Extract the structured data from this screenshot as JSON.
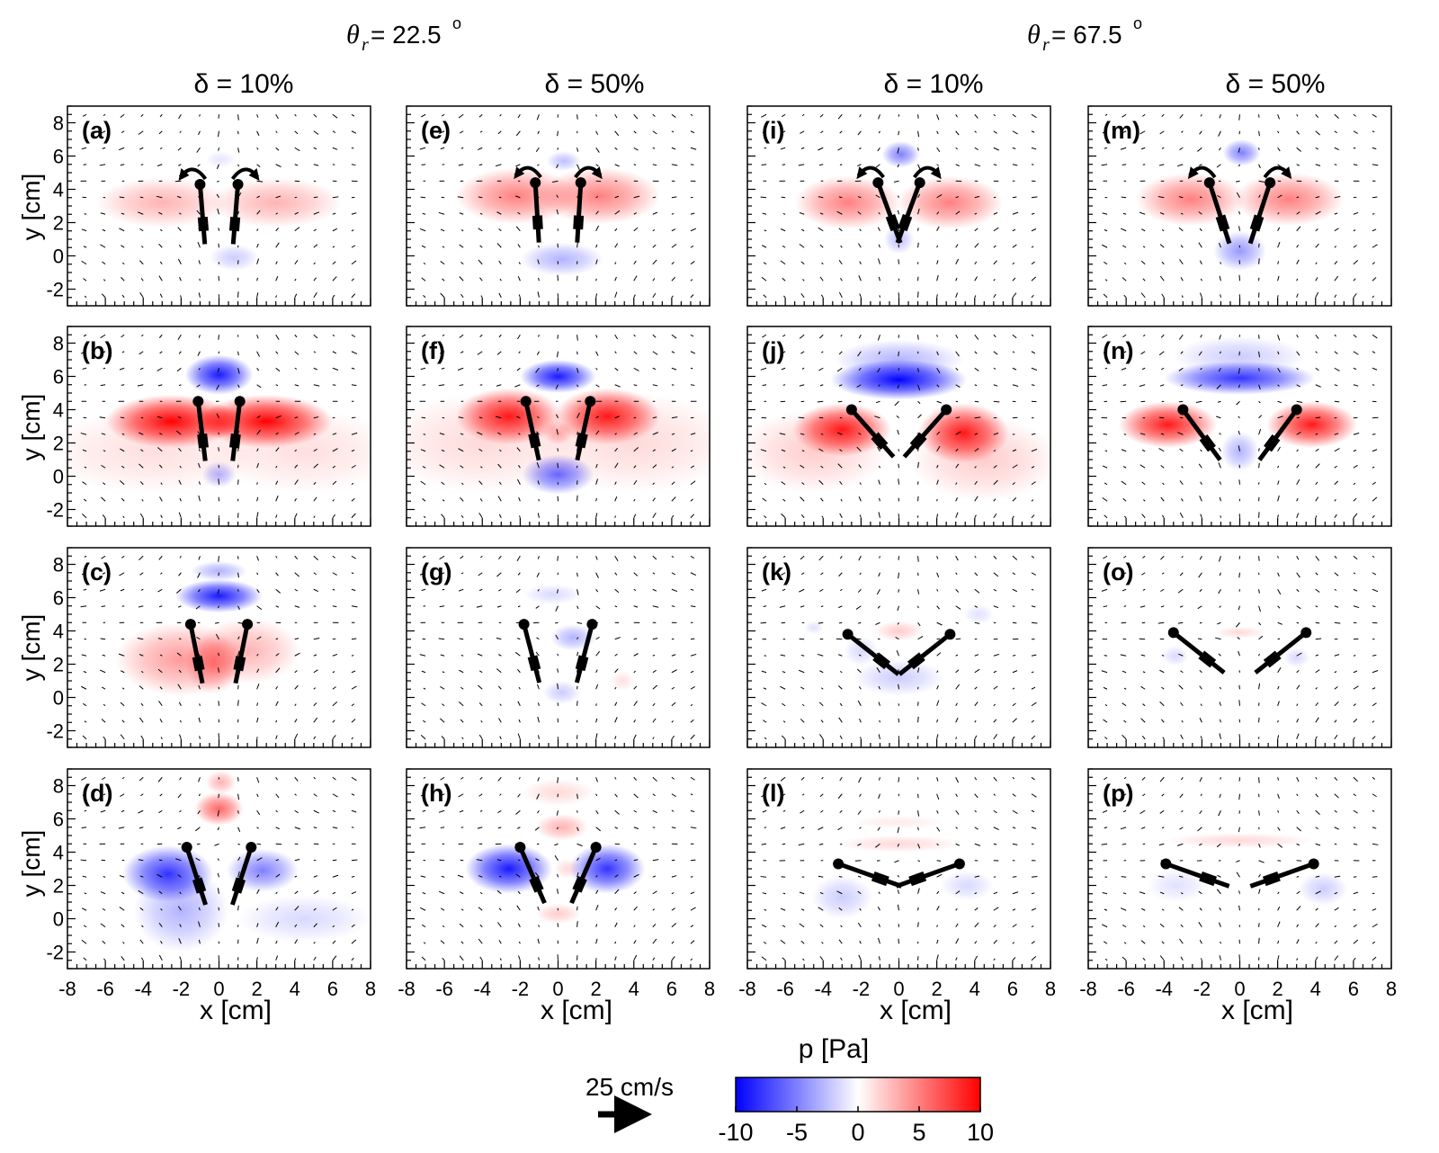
{
  "figure": {
    "group_headers": [
      {
        "symbol": "θ",
        "subscript": "r",
        "value_text": " = 22.5",
        "superscript": "o"
      },
      {
        "symbol": "θ",
        "subscript": "r",
        "value_text": " = 67.5",
        "superscript": "o"
      }
    ],
    "column_headers": [
      "δ = 10%",
      "δ = 50%",
      "δ = 10%",
      "δ = 50%"
    ],
    "panel_labels": [
      "(a)",
      "(b)",
      "(c)",
      "(d)",
      "(e)",
      "(f)",
      "(g)",
      "(h)",
      "(i)",
      "(j)",
      "(k)",
      "(l)",
      "(m)",
      "(n)",
      "(o)",
      "(p)"
    ],
    "xlabel": "x [cm]",
    "ylabel": "y [cm]",
    "colorbar": {
      "title": "p [Pa]",
      "ticks": [
        "-10",
        "-5",
        "0",
        "5",
        "10"
      ],
      "range": [
        -10,
        10
      ],
      "colors": {
        "negative": "#0000ff",
        "zero": "#ffffff",
        "positive": "#ff0000"
      }
    },
    "reference_vector": {
      "label": "25 cm/s"
    }
  },
  "chart_data": {
    "type": "heatmap",
    "description_units": {
      "x": "cm",
      "y": "cm",
      "p": "Pa"
    },
    "xlim": [
      -8,
      8
    ],
    "ylim": [
      -3,
      9
    ],
    "xticks": [
      "-8",
      "-6",
      "-4",
      "-2",
      "0",
      "2",
      "4",
      "6",
      "8"
    ],
    "yticks": [
      "-2",
      "0",
      "2",
      "4",
      "6",
      "8"
    ],
    "pressure_range": [
      -10,
      10
    ],
    "columns": [
      {
        "theta_r": 22.5,
        "delta_percent": 10
      },
      {
        "theta_r": 22.5,
        "delta_percent": 50
      },
      {
        "theta_r": 67.5,
        "delta_percent": 10
      },
      {
        "theta_r": 67.5,
        "delta_percent": 50
      }
    ],
    "panels": [
      {
        "label": "(a)",
        "col": 0,
        "row": 0,
        "pivot_y": 4.3,
        "pivot_x": 1.0,
        "wing_len": 3.6,
        "tilt": 4,
        "arrows": true,
        "blobs": [
          {
            "x": -3.0,
            "y": 3.2,
            "rx": 3.5,
            "ry": 1.5,
            "p": 3
          },
          {
            "x": 3.0,
            "y": 3.2,
            "rx": 3.5,
            "ry": 1.5,
            "p": 3
          },
          {
            "x": 0.1,
            "y": 5.8,
            "rx": 0.8,
            "ry": 0.5,
            "p": -1
          },
          {
            "x": 0.8,
            "y": -0.1,
            "rx": 1.3,
            "ry": 0.8,
            "p": -2
          }
        ]
      },
      {
        "label": "(b)",
        "col": 0,
        "row": 1,
        "pivot_y": 4.5,
        "pivot_x": 1.1,
        "wing_len": 3.6,
        "tilt": 6,
        "arrows": false,
        "blobs": [
          {
            "x": -2.5,
            "y": 3.3,
            "rx": 3.5,
            "ry": 1.6,
            "p": 10
          },
          {
            "x": 2.5,
            "y": 3.3,
            "rx": 3.5,
            "ry": 1.6,
            "p": 10
          },
          {
            "x": 0.0,
            "y": 3.3,
            "rx": 1.2,
            "ry": 1.0,
            "p": 6
          },
          {
            "x": 0.0,
            "y": 6.1,
            "rx": 1.8,
            "ry": 1.2,
            "p": -9
          },
          {
            "x": 0.0,
            "y": 0.1,
            "rx": 0.9,
            "ry": 0.8,
            "p": -3
          },
          {
            "x": -3.5,
            "y": 1.5,
            "rx": 6,
            "ry": 2.5,
            "p": 1.3
          },
          {
            "x": 4.5,
            "y": 1.5,
            "rx": 5,
            "ry": 2.5,
            "p": 1.3
          }
        ]
      },
      {
        "label": "(c)",
        "col": 0,
        "row": 2,
        "pivot_y": 4.4,
        "pivot_x": 1.5,
        "wing_len": 3.6,
        "tilt": 10,
        "arrows": false,
        "blobs": [
          {
            "x": -2.0,
            "y": 2.3,
            "rx": 3.5,
            "ry": 2.2,
            "p": 4
          },
          {
            "x": 1.5,
            "y": 2.8,
            "rx": 2.8,
            "ry": 2.0,
            "p": 3
          },
          {
            "x": -0.3,
            "y": 2.0,
            "rx": 1.5,
            "ry": 1.8,
            "p": 4
          },
          {
            "x": 0.0,
            "y": 6.1,
            "rx": 2.3,
            "ry": 1.0,
            "p": -9
          },
          {
            "x": 0.0,
            "y": 7.6,
            "rx": 1.5,
            "ry": 0.6,
            "p": -3
          }
        ]
      },
      {
        "label": "(d)",
        "col": 0,
        "row": 3,
        "pivot_y": 4.3,
        "pivot_x": 1.7,
        "wing_len": 3.6,
        "tilt": 16,
        "arrows": false,
        "blobs": [
          {
            "x": -2.7,
            "y": 2.7,
            "rx": 2.4,
            "ry": 1.7,
            "p": -8
          },
          {
            "x": 2.3,
            "y": 2.9,
            "rx": 1.9,
            "ry": 1.3,
            "p": -5
          },
          {
            "x": -2.0,
            "y": 0.5,
            "rx": 2.5,
            "ry": 2.5,
            "p": -3
          },
          {
            "x": 0.0,
            "y": 6.6,
            "rx": 1.3,
            "ry": 1.0,
            "p": 6
          },
          {
            "x": 0.1,
            "y": 8.2,
            "rx": 0.8,
            "ry": 0.7,
            "p": 3
          },
          {
            "x": 4.5,
            "y": 0.0,
            "rx": 3.5,
            "ry": 1.4,
            "p": -1.5
          }
        ]
      },
      {
        "label": "(e)",
        "col": 1,
        "row": 0,
        "pivot_y": 4.4,
        "pivot_x": 1.2,
        "wing_len": 3.6,
        "tilt": 3,
        "arrows": true,
        "blobs": [
          {
            "x": -2.2,
            "y": 3.6,
            "rx": 3.2,
            "ry": 1.7,
            "p": 5
          },
          {
            "x": 2.2,
            "y": 3.6,
            "rx": 3.2,
            "ry": 1.7,
            "p": 5
          },
          {
            "x": 0.3,
            "y": 5.7,
            "rx": 0.9,
            "ry": 0.6,
            "p": -2.5
          },
          {
            "x": 0.2,
            "y": -0.2,
            "rx": 2.2,
            "ry": 1.0,
            "p": -3
          }
        ]
      },
      {
        "label": "(f)",
        "col": 1,
        "row": 1,
        "pivot_y": 4.5,
        "pivot_x": 1.7,
        "wing_len": 3.6,
        "tilt": 11,
        "arrows": false,
        "blobs": [
          {
            "x": -2.6,
            "y": 3.6,
            "rx": 2.8,
            "ry": 1.7,
            "p": 9
          },
          {
            "x": 2.6,
            "y": 3.6,
            "rx": 2.8,
            "ry": 1.7,
            "p": 9
          },
          {
            "x": 0.0,
            "y": 6.0,
            "rx": 2.0,
            "ry": 1.0,
            "p": -9
          },
          {
            "x": 0.0,
            "y": 0.1,
            "rx": 1.9,
            "ry": 1.2,
            "p": -6
          },
          {
            "x": 0.0,
            "y": 2.6,
            "rx": 0.8,
            "ry": 0.7,
            "p": 3
          },
          {
            "x": -4,
            "y": 2.0,
            "rx": 5.5,
            "ry": 3,
            "p": 1.5
          },
          {
            "x": 4,
            "y": 2.0,
            "rx": 5.5,
            "ry": 3,
            "p": 1.5
          }
        ]
      },
      {
        "label": "(g)",
        "col": 1,
        "row": 2,
        "pivot_y": 4.4,
        "pivot_x": 1.8,
        "wing_len": 3.6,
        "tilt": 13,
        "arrows": false,
        "blobs": [
          {
            "x": 0.8,
            "y": 3.6,
            "rx": 1.2,
            "ry": 0.8,
            "p": -3
          },
          {
            "x": -0.3,
            "y": 6.2,
            "rx": 1.5,
            "ry": 0.6,
            "p": -1.5
          },
          {
            "x": 0.2,
            "y": 0.3,
            "rx": 1.0,
            "ry": 0.7,
            "p": -2
          },
          {
            "x": 3.4,
            "y": 1.0,
            "rx": 0.6,
            "ry": 0.6,
            "p": 1.2
          }
        ]
      },
      {
        "label": "(h)",
        "col": 1,
        "row": 3,
        "pivot_y": 4.3,
        "pivot_x": 2.0,
        "wing_len": 3.6,
        "tilt": 21,
        "arrows": false,
        "blobs": [
          {
            "x": -2.6,
            "y": 3.0,
            "rx": 2.3,
            "ry": 1.5,
            "p": -9
          },
          {
            "x": 2.6,
            "y": 3.0,
            "rx": 2.0,
            "ry": 1.5,
            "p": -8
          },
          {
            "x": 0.2,
            "y": 5.5,
            "rx": 1.4,
            "ry": 0.8,
            "p": 3
          },
          {
            "x": 0.0,
            "y": 7.6,
            "rx": 1.9,
            "ry": 0.8,
            "p": 1.5
          },
          {
            "x": 0.0,
            "y": 0.3,
            "rx": 1.2,
            "ry": 0.6,
            "p": 2
          },
          {
            "x": 0.5,
            "y": 3.0,
            "rx": 0.7,
            "ry": 0.6,
            "p": 1.5
          }
        ]
      },
      {
        "label": "(i)",
        "col": 2,
        "row": 0,
        "pivot_y": 4.4,
        "pivot_x": 1.1,
        "wing_len": 3.8,
        "tilt": 18,
        "arrows": true,
        "blobs": [
          {
            "x": -2.7,
            "y": 3.2,
            "rx": 2.8,
            "ry": 1.6,
            "p": 5
          },
          {
            "x": 2.7,
            "y": 3.2,
            "rx": 2.8,
            "ry": 1.6,
            "p": 5
          },
          {
            "x": 0.1,
            "y": 6.1,
            "rx": 1.0,
            "ry": 0.8,
            "p": -5
          },
          {
            "x": 0.0,
            "y": 1.0,
            "rx": 0.8,
            "ry": 0.9,
            "p": -2.5
          }
        ]
      },
      {
        "label": "(j)",
        "col": 2,
        "row": 1,
        "pivot_y": 4.0,
        "pivot_x": 2.5,
        "wing_len": 3.6,
        "tilt": 38,
        "arrows": false,
        "blobs": [
          {
            "x": -3.0,
            "y": 2.8,
            "rx": 2.6,
            "ry": 1.6,
            "p": 9
          },
          {
            "x": 3.4,
            "y": 2.6,
            "rx": 2.4,
            "ry": 1.8,
            "p": 9
          },
          {
            "x": 0.0,
            "y": 5.8,
            "rx": 3.6,
            "ry": 1.2,
            "p": -10
          },
          {
            "x": 0.0,
            "y": 7.0,
            "rx": 3.4,
            "ry": 1.2,
            "p": -3
          },
          {
            "x": -4.5,
            "y": 1.5,
            "rx": 4,
            "ry": 2.5,
            "p": 2
          },
          {
            "x": 4.5,
            "y": 1.0,
            "rx": 4,
            "ry": 2.5,
            "p": 2
          }
        ]
      },
      {
        "label": "(k)",
        "col": 2,
        "row": 2,
        "pivot_y": 3.8,
        "pivot_x": 2.7,
        "wing_len": 3.6,
        "tilt": 48,
        "arrows": false,
        "blobs": [
          {
            "x": 0.0,
            "y": 4.0,
            "rx": 1.3,
            "ry": 0.6,
            "p": 2
          },
          {
            "x": 0.0,
            "y": 1.2,
            "rx": 2.4,
            "ry": 1.1,
            "p": -2
          },
          {
            "x": -2.0,
            "y": 2.8,
            "rx": 0.9,
            "ry": 0.9,
            "p": -1.5
          },
          {
            "x": 4.2,
            "y": 5.0,
            "rx": 0.8,
            "ry": 0.6,
            "p": -1.2
          },
          {
            "x": -4.5,
            "y": 4.2,
            "rx": 0.5,
            "ry": 0.4,
            "p": -1.2
          }
        ]
      },
      {
        "label": "(l)",
        "col": 2,
        "row": 3,
        "pivot_y": 3.3,
        "pivot_x": 3.2,
        "wing_len": 3.6,
        "tilt": 68,
        "arrows": false,
        "blobs": [
          {
            "x": 0.0,
            "y": 4.5,
            "rx": 3.3,
            "ry": 0.5,
            "p": 1.5
          },
          {
            "x": 0.0,
            "y": 5.8,
            "rx": 2.5,
            "ry": 0.4,
            "p": 0.8
          },
          {
            "x": -3.0,
            "y": 1.3,
            "rx": 1.6,
            "ry": 1.3,
            "p": -2
          },
          {
            "x": 3.6,
            "y": 2.0,
            "rx": 1.4,
            "ry": 0.9,
            "p": -1.5
          }
        ]
      },
      {
        "label": "(m)",
        "col": 3,
        "row": 0,
        "pivot_y": 4.4,
        "pivot_x": 1.6,
        "wing_len": 3.8,
        "tilt": 16,
        "arrows": true,
        "blobs": [
          {
            "x": -2.6,
            "y": 3.4,
            "rx": 2.9,
            "ry": 1.6,
            "p": 5
          },
          {
            "x": 2.6,
            "y": 3.4,
            "rx": 2.9,
            "ry": 1.6,
            "p": 5
          },
          {
            "x": 0.1,
            "y": 6.2,
            "rx": 1.0,
            "ry": 0.8,
            "p": -5
          },
          {
            "x": 0.0,
            "y": 0.3,
            "rx": 1.4,
            "ry": 1.2,
            "p": -4
          }
        ]
      },
      {
        "label": "(n)",
        "col": 3,
        "row": 1,
        "pivot_y": 4.0,
        "pivot_x": 3.0,
        "wing_len": 3.6,
        "tilt": 33,
        "arrows": false,
        "blobs": [
          {
            "x": -3.8,
            "y": 3.1,
            "rx": 2.6,
            "ry": 1.4,
            "p": 9
          },
          {
            "x": 3.8,
            "y": 3.1,
            "rx": 2.4,
            "ry": 1.4,
            "p": 9
          },
          {
            "x": 0.0,
            "y": 5.9,
            "rx": 4.0,
            "ry": 1.0,
            "p": -8
          },
          {
            "x": 0.0,
            "y": 7.2,
            "rx": 3.5,
            "ry": 1.2,
            "p": -2
          },
          {
            "x": 0.0,
            "y": 1.5,
            "rx": 1.0,
            "ry": 1.2,
            "p": -3
          }
        ]
      },
      {
        "label": "(o)",
        "col": 3,
        "row": 2,
        "pivot_y": 3.9,
        "pivot_x": 3.5,
        "wing_len": 3.6,
        "tilt": 48,
        "arrows": false,
        "blobs": [
          {
            "x": 0.0,
            "y": 3.9,
            "rx": 1.3,
            "ry": 0.35,
            "p": 1.5
          },
          {
            "x": -3.4,
            "y": 2.5,
            "rx": 0.7,
            "ry": 0.6,
            "p": -1.5
          },
          {
            "x": 3.0,
            "y": 2.4,
            "rx": 0.7,
            "ry": 0.6,
            "p": -1.5
          }
        ]
      },
      {
        "label": "(p)",
        "col": 3,
        "row": 3,
        "pivot_y": 3.3,
        "pivot_x": 3.9,
        "wing_len": 3.6,
        "tilt": 68,
        "arrows": false,
        "blobs": [
          {
            "x": 0.0,
            "y": 4.7,
            "rx": 3.9,
            "ry": 0.45,
            "p": 1.5
          },
          {
            "x": -3.3,
            "y": 2.0,
            "rx": 1.6,
            "ry": 1.0,
            "p": -1.2
          },
          {
            "x": 4.4,
            "y": 1.8,
            "rx": 1.3,
            "ry": 1.0,
            "p": -2
          }
        ]
      }
    ]
  }
}
